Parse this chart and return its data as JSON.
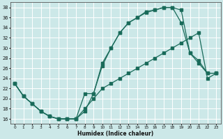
{
  "xlabel": "Humidex (Indice chaleur)",
  "bg_color": "#cce8e8",
  "line_color": "#1a6b5a",
  "grid_color": "#ffffff",
  "xlim": [
    -0.5,
    23.5
  ],
  "ylim": [
    15.0,
    39.0
  ],
  "yticks": [
    16,
    18,
    20,
    22,
    24,
    26,
    28,
    30,
    32,
    34,
    36,
    38
  ],
  "xticks": [
    0,
    1,
    2,
    3,
    4,
    5,
    6,
    7,
    8,
    9,
    10,
    11,
    12,
    13,
    14,
    15,
    16,
    17,
    18,
    19,
    20,
    21,
    22,
    23
  ],
  "line1_x": [
    0,
    1,
    2,
    3,
    4,
    5,
    6,
    7,
    8,
    9,
    10,
    11,
    12,
    13,
    14,
    15,
    16,
    17,
    18,
    19,
    20,
    21,
    22,
    23
  ],
  "line1_y": [
    23,
    20.5,
    19,
    17.5,
    16.5,
    16,
    16,
    16,
    17.5,
    21,
    27,
    30,
    33,
    35,
    36,
    37,
    37.5,
    38,
    38,
    37.5,
    29,
    27,
    25,
    25
  ],
  "line2_x": [
    0,
    1,
    2,
    3,
    4,
    5,
    6,
    7,
    8,
    9,
    10,
    11,
    12,
    13,
    14,
    15,
    16,
    17,
    18,
    19,
    20,
    21,
    22,
    23
  ],
  "line2_y": [
    23,
    20.5,
    19,
    17.5,
    16.5,
    16,
    16,
    16,
    21,
    21,
    26.5,
    30,
    33,
    35,
    36,
    37.2,
    37.5,
    38,
    38,
    35,
    29,
    27.5,
    25,
    25
  ],
  "line3_x": [
    0,
    1,
    2,
    3,
    4,
    5,
    6,
    7,
    8,
    9,
    10,
    11,
    12,
    13,
    14,
    15,
    16,
    17,
    18,
    19,
    20,
    21,
    22,
    23
  ],
  "line3_y": [
    23,
    20.5,
    19,
    17.5,
    16.5,
    16,
    16,
    16,
    18,
    20,
    22,
    23,
    24,
    25,
    26,
    27,
    28,
    29,
    30,
    31,
    32,
    33,
    24,
    25
  ]
}
